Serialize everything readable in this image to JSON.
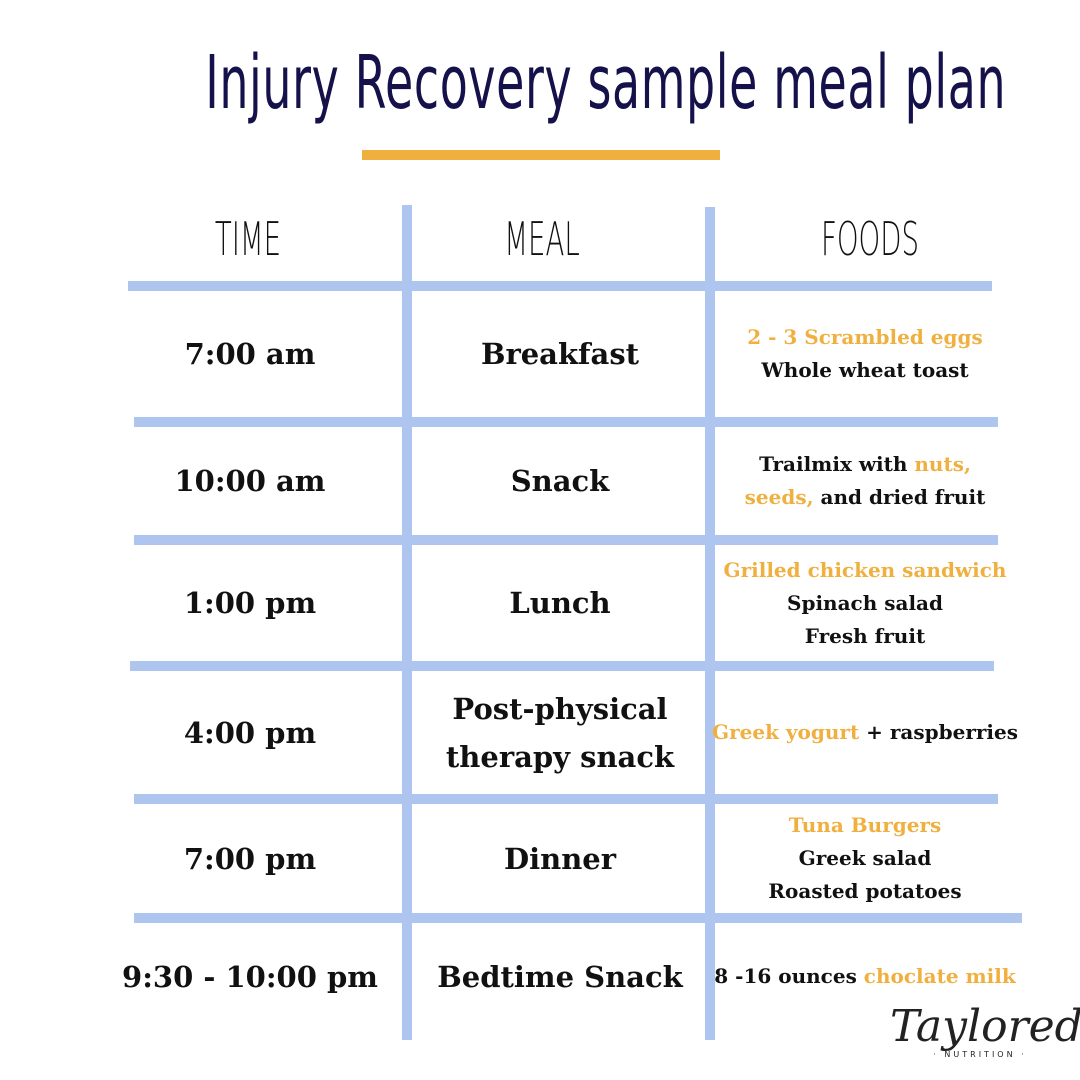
{
  "title": "Injury Recovery sample meal plan",
  "colors": {
    "title": "#15114a",
    "accent": "#f0b040",
    "grid": "#aec6ef"
  },
  "headers": [
    "TIME",
    "MEAL",
    "FOODS"
  ],
  "rows": [
    {
      "time": "7:00 am",
      "meal": [
        "Breakfast"
      ],
      "foods": [
        [
          {
            "t": "2 - 3 Scrambled eggs",
            "h": true
          }
        ],
        [
          {
            "t": "Whole wheat toast",
            "h": false
          }
        ]
      ]
    },
    {
      "time": "10:00 am",
      "meal": [
        "Snack"
      ],
      "foods": [
        [
          {
            "t": "Trailmix with ",
            "h": false
          },
          {
            "t": "nuts,",
            "h": true
          }
        ],
        [
          {
            "t": "seeds,",
            "h": true
          },
          {
            "t": " and dried fruit",
            "h": false
          }
        ]
      ]
    },
    {
      "time": "1:00 pm",
      "meal": [
        "Lunch"
      ],
      "foods": [
        [
          {
            "t": "Grilled chicken sandwich",
            "h": true
          }
        ],
        [
          {
            "t": "Spinach salad",
            "h": false
          }
        ],
        [
          {
            "t": "Fresh fruit",
            "h": false
          }
        ]
      ]
    },
    {
      "time": "4:00 pm",
      "meal": [
        "Post-physical",
        "therapy snack"
      ],
      "foods": [
        [
          {
            "t": "Greek yogurt",
            "h": true
          },
          {
            "t": " + raspberries",
            "h": false
          }
        ]
      ]
    },
    {
      "time": "7:00 pm",
      "meal": [
        "Dinner"
      ],
      "foods": [
        [
          {
            "t": "Tuna Burgers",
            "h": true
          }
        ],
        [
          {
            "t": "Greek salad",
            "h": false
          }
        ],
        [
          {
            "t": "Roasted potatoes",
            "h": false
          }
        ]
      ]
    },
    {
      "time": "9:30 - 10:00 pm",
      "meal": [
        "Bedtime Snack"
      ],
      "foods": [
        [
          {
            "t": "8 -16 ounces ",
            "h": false
          },
          {
            "t": "choclate milk",
            "h": true
          }
        ]
      ]
    }
  ],
  "logo": {
    "name": "Taylored",
    "sub": "· NUTRITION ·"
  }
}
